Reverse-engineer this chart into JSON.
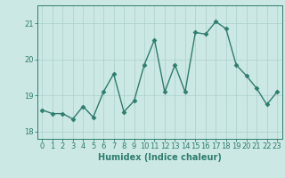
{
  "x": [
    0,
    1,
    2,
    3,
    4,
    5,
    6,
    7,
    8,
    9,
    10,
    11,
    12,
    13,
    14,
    15,
    16,
    17,
    18,
    19,
    20,
    21,
    22,
    23
  ],
  "y": [
    18.6,
    18.5,
    18.5,
    18.35,
    18.7,
    18.4,
    19.1,
    19.6,
    18.55,
    18.85,
    19.85,
    20.55,
    19.1,
    19.85,
    19.1,
    20.75,
    20.7,
    21.05,
    20.85,
    19.85,
    19.55,
    19.2,
    18.75,
    19.1
  ],
  "line_color": "#2e7d6e",
  "marker": "D",
  "markersize": 2.5,
  "linewidth": 1.0,
  "background_color": "#cce8e4",
  "grid_color": "#aacfcb",
  "xlabel": "Humidex (Indice chaleur)",
  "xlabel_fontsize": 7,
  "tick_fontsize": 6,
  "ylim": [
    17.8,
    21.5
  ],
  "yticks": [
    18,
    19,
    20,
    21
  ],
  "xlim": [
    -0.5,
    23.5
  ],
  "xticks": [
    0,
    1,
    2,
    3,
    4,
    5,
    6,
    7,
    8,
    9,
    10,
    11,
    12,
    13,
    14,
    15,
    16,
    17,
    18,
    19,
    20,
    21,
    22,
    23
  ]
}
